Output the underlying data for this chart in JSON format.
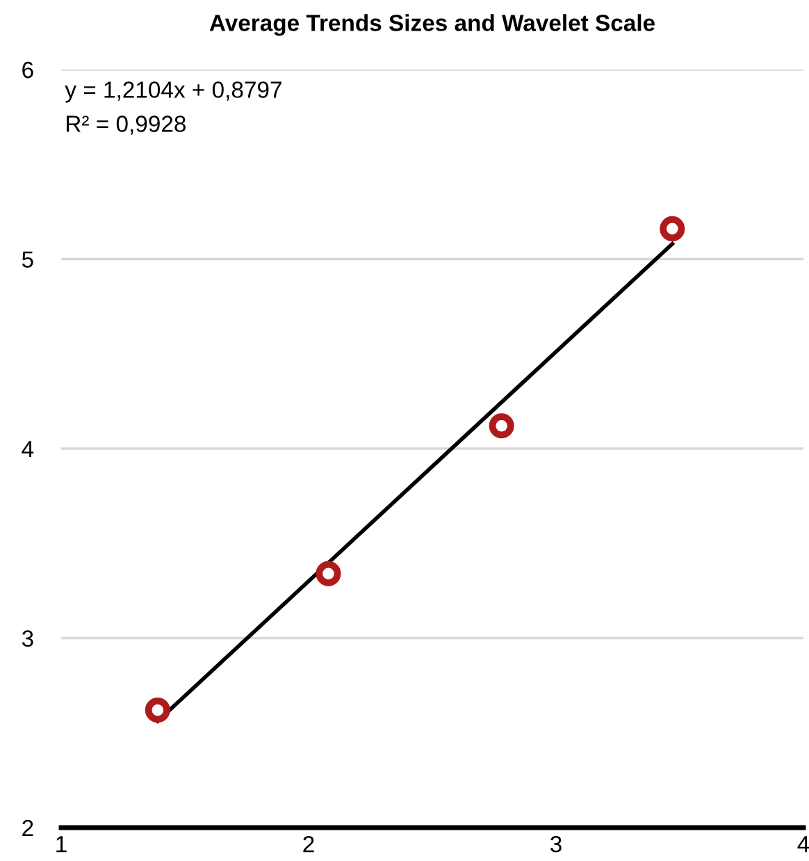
{
  "chart_data": {
    "type": "scatter",
    "title": "Average Trends Sizes and Wavelet Scale",
    "series": [
      {
        "marker": "circle",
        "color": "#b01a1a",
        "x": [
          1.39,
          2.08,
          2.78,
          3.47
        ],
        "values": [
          2.62,
          3.34,
          4.12,
          5.16
        ]
      },
      {
        "type": "line",
        "marker": "none",
        "color": "#000000",
        "x": [
          1.39,
          3.47
        ],
        "values": [
          2.562,
          5.08
        ]
      }
    ],
    "annotations": [
      "y = 1,2104x + 0,8797",
      "R² = 0,9928"
    ],
    "xlim": [
      1,
      4
    ],
    "xticks": [
      1,
      2,
      3,
      4
    ],
    "ylim": [
      2,
      6
    ],
    "yticks": [
      2,
      3,
      4,
      5,
      6
    ],
    "grid": "y"
  }
}
